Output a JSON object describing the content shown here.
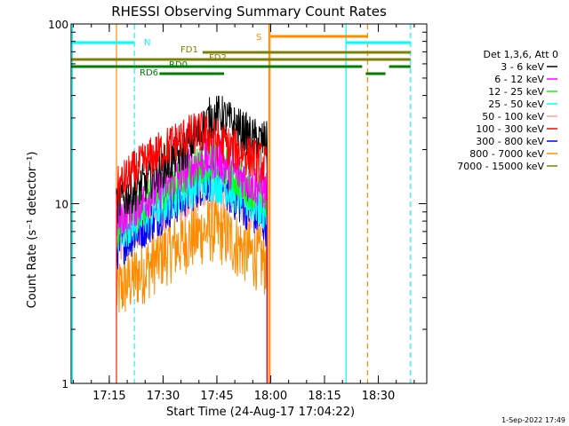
{
  "chart_data": {
    "type": "line",
    "title": "RHESSI Observing Summary Count Rates",
    "ylabel": "Count Rate (s⁻¹ detector⁻¹)",
    "xlabel": "Start Time (24-Aug-17 17:04:22)",
    "footer": "1-Sep-2022 17:49",
    "y_scale": "log",
    "ylim": [
      1,
      100
    ],
    "y_ticks": [
      {
        "value": 1,
        "label": "1"
      },
      {
        "value": 10,
        "label": "10"
      },
      {
        "value": 100,
        "label": "100"
      }
    ],
    "xlim": [
      "17:04:22",
      "18:43:30"
    ],
    "x_ticks": [
      "17:15",
      "17:30",
      "17:45",
      "18:00",
      "18:15",
      "18:30"
    ],
    "legend": {
      "header": "Det 1,3,6, Att 0",
      "placement": "right",
      "entries": [
        {
          "label": "3 - 6 keV",
          "color": "#000000"
        },
        {
          "label": "6 - 12 keV",
          "color": "#ff00ff"
        },
        {
          "label": "12 - 25 keV",
          "color": "#00ff00"
        },
        {
          "label": "25 - 50 keV",
          "color": "#00ffff"
        },
        {
          "label": "50 - 100 keV",
          "color": "#ffa0a0"
        },
        {
          "label": "100 - 300 keV",
          "color": "#ff0000"
        },
        {
          "label": "300 - 800 keV",
          "color": "#0000ff"
        },
        {
          "label": "800 - 7000 keV",
          "color": "#ff8c00"
        },
        {
          "label": "7000 - 15000 keV",
          "color": "#808000"
        }
      ]
    },
    "series": [
      {
        "name": "3 - 6 keV",
        "color": "#000000",
        "x": [
          "17:17:00",
          "17:20:00",
          "17:25:00",
          "17:30:00",
          "17:35:00",
          "17:40:00",
          "17:43:00",
          "17:46:00",
          "17:50:00",
          "17:55:00",
          "17:59:00"
        ],
        "y": [
          10,
          11,
          13,
          16,
          19,
          24,
          30,
          31,
          27,
          23,
          22
        ]
      },
      {
        "name": "6 - 12 keV",
        "color": "#ff00ff",
        "x": [
          "17:17:00",
          "17:20:00",
          "17:25:00",
          "17:30:00",
          "17:35:00",
          "17:40:00",
          "17:43:00",
          "17:46:00",
          "17:50:00",
          "17:55:00",
          "17:59:00"
        ],
        "y": [
          8,
          9,
          10.5,
          12.5,
          14.5,
          17,
          18,
          17.5,
          15,
          13,
          11.5
        ]
      },
      {
        "name": "12 - 25 keV",
        "color": "#00ff00",
        "x": [
          "17:17:00",
          "17:20:00",
          "17:25:00",
          "17:30:00",
          "17:35:00",
          "17:40:00",
          "17:43:00",
          "17:46:00",
          "17:50:00",
          "17:55:00",
          "17:59:00"
        ],
        "y": [
          7.5,
          8.5,
          10,
          12,
          14,
          16.5,
          17.5,
          17,
          14,
          12,
          10.5
        ]
      },
      {
        "name": "25 - 50 keV",
        "color": "#00ffff",
        "x": [
          "17:17:00",
          "17:20:00",
          "17:25:00",
          "17:30:00",
          "17:35:00",
          "17:40:00",
          "17:43:00",
          "17:46:00",
          "17:50:00",
          "17:55:00",
          "17:59:00"
        ],
        "y": [
          6.5,
          7.5,
          8.5,
          10,
          11.5,
          13,
          13.5,
          13,
          11.5,
          10,
          9
        ]
      },
      {
        "name": "50 - 100 keV",
        "color": "#ffa0a0",
        "x": [
          "17:17:00",
          "17:20:00",
          "17:25:00",
          "17:30:00",
          "17:35:00",
          "17:40:00",
          "17:43:00",
          "17:46:00",
          "17:50:00",
          "17:55:00",
          "17:59:00"
        ],
        "y": [
          6,
          6.8,
          7.8,
          9,
          10.5,
          11.8,
          12.2,
          11.8,
          10.5,
          9,
          8
        ]
      },
      {
        "name": "100 - 300 keV",
        "color": "#ff0000",
        "x": [
          "17:17:00",
          "17:20:00",
          "17:25:00",
          "17:30:00",
          "17:35:00",
          "17:40:00",
          "17:43:00",
          "17:46:00",
          "17:50:00",
          "17:55:00",
          "17:59:00"
        ],
        "y": [
          12,
          14,
          17,
          20,
          23,
          25,
          24,
          22,
          20,
          18,
          16
        ]
      },
      {
        "name": "300 - 800 keV",
        "color": "#0000ff",
        "x": [
          "17:17:00",
          "17:20:00",
          "17:25:00",
          "17:30:00",
          "17:35:00",
          "17:40:00",
          "17:43:00",
          "17:46:00",
          "17:50:00",
          "17:55:00",
          "17:59:00"
        ],
        "y": [
          5.5,
          6.3,
          7.5,
          9,
          10.5,
          12.5,
          13.5,
          13,
          10.5,
          8.8,
          7.5
        ]
      },
      {
        "name": "800 - 7000 keV",
        "color": "#ff8c00",
        "x": [
          "17:17:00",
          "17:20:00",
          "17:25:00",
          "17:30:00",
          "17:35:00",
          "17:40:00",
          "17:43:00",
          "17:46:00",
          "17:50:00",
          "17:55:00",
          "17:59:00"
        ],
        "y": [
          3.2,
          3.6,
          4.3,
          5.2,
          6,
          6.8,
          7.2,
          7,
          6,
          5.2,
          4.6
        ]
      },
      {
        "name": "7000 - 15000 keV",
        "color": "#808000",
        "x": [],
        "y": []
      }
    ],
    "flag_bars": [
      {
        "label": "N",
        "color": "#00ffff",
        "segments": [
          [
            "17:04:22",
            "17:22:00"
          ],
          [
            "18:21:00",
            "18:39:00"
          ]
        ]
      },
      {
        "label": "S",
        "color": "#ff8c00",
        "segments": [
          [
            "18:00:00",
            "18:27:00"
          ]
        ]
      },
      {
        "label": "FD1",
        "color": "#808000",
        "segments": [
          [
            "17:41:00",
            "18:39:00"
          ]
        ]
      },
      {
        "label": "FD2",
        "color": "#808000",
        "segments": [
          [
            "17:04:22",
            "18:39:00"
          ]
        ]
      },
      {
        "label": "RD0",
        "color": "#008000",
        "segments": [
          [
            "17:04:22",
            "18:25:30"
          ],
          [
            "18:33:00",
            "18:39:00"
          ]
        ]
      },
      {
        "label": "RD6",
        "color": "#008000",
        "segments": [
          [
            "17:29:00",
            "17:47:00"
          ],
          [
            "18:26:30",
            "18:32:00"
          ]
        ]
      }
    ],
    "vertical_markers": [
      {
        "time": "17:04:45",
        "color": "#00ffff",
        "style": "solid"
      },
      {
        "time": "17:22:00",
        "color": "#00ffff",
        "style": "dashed"
      },
      {
        "time": "17:17:00",
        "color": "#ff8c00",
        "style": "solid"
      },
      {
        "time": "17:59:30",
        "color": "#ff8c00",
        "style": "solid"
      },
      {
        "time": "17:59:50",
        "color": "#ff8c00",
        "style": "solid"
      },
      {
        "time": "18:21:00",
        "color": "#00ffff",
        "style": "solid"
      },
      {
        "time": "18:27:00",
        "color": "#ff8c00",
        "style": "dashed"
      },
      {
        "time": "18:39:00",
        "color": "#00ffff",
        "style": "dashed"
      }
    ]
  }
}
